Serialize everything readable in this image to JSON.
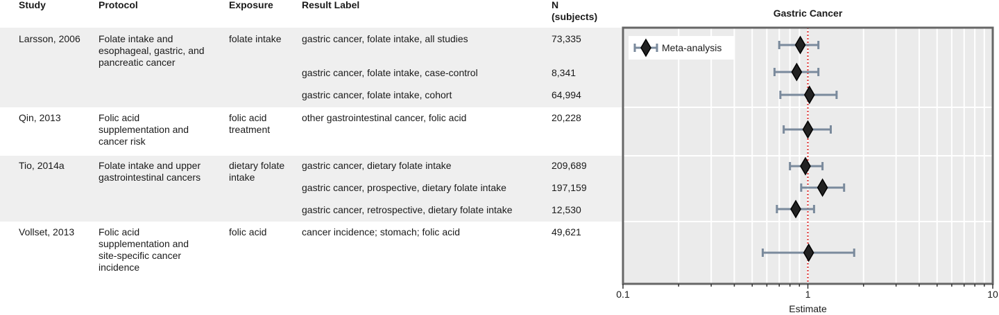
{
  "table": {
    "headers": {
      "study": "Study",
      "protocol": "Protocol",
      "exposure": "Exposure",
      "result_label": "Result Label",
      "n": "N\n(subjects)"
    },
    "groups": [
      {
        "study": "Larsson, 2006",
        "protocol": "Folate intake and\nesophageal, gastric, and\npancreatic cancer",
        "exposure": "folate intake",
        "shaded": true,
        "results": [
          {
            "label": "gastric cancer, folate intake, all studies",
            "n": "73,335"
          },
          {
            "label": "gastric cancer, folate intake, case-control",
            "n": "8,341"
          },
          {
            "label": "gastric cancer, folate intake, cohort",
            "n": "64,994"
          }
        ]
      },
      {
        "study": "Qin, 2013",
        "protocol": "Folic acid\nsupplementation and\ncancer risk",
        "exposure": "folic acid\ntreatment",
        "shaded": false,
        "results": [
          {
            "label": "other gastrointestinal cancer, folic acid",
            "n": "20,228"
          }
        ]
      },
      {
        "study": "Tio, 2014a",
        "protocol": "Folate intake and upper\ngastrointestinal cancers",
        "exposure": "dietary folate\nintake",
        "shaded": true,
        "results": [
          {
            "label": "gastric cancer, dietary folate intake",
            "n": "209,689"
          },
          {
            "label": "gastric cancer, prospective, dietary folate intake",
            "n": "197,159"
          },
          {
            "label": "gastric cancer, retrospective, dietary folate intake",
            "n": "12,530"
          }
        ]
      },
      {
        "study": "Vollset, 2013",
        "protocol": "Folic acid\nsupplementation and\nsite-specific cancer\nincidence",
        "exposure": "folic acid",
        "shaded": false,
        "results": [
          {
            "label": "cancer incidence; stomach; folic acid",
            "n": "49,621"
          }
        ]
      }
    ]
  },
  "chart_data": {
    "type": "scatter",
    "title": "Gastric Cancer",
    "xlabel": "Estimate",
    "xscale": "log",
    "xlim": [
      0.1,
      10
    ],
    "x_ticks": [
      "0.1",
      "1",
      "10"
    ],
    "reference_line": 1,
    "grid": true,
    "legend": {
      "entries": [
        "Meta-analysis"
      ],
      "placement": "top-left"
    },
    "series": [
      {
        "name": "Meta-analysis",
        "points": [
          {
            "estimate": 0.91,
            "lower": 0.7,
            "upper": 1.14
          },
          {
            "estimate": 0.87,
            "lower": 0.66,
            "upper": 1.14
          },
          {
            "estimate": 1.02,
            "lower": 0.71,
            "upper": 1.43
          },
          {
            "estimate": 1.0,
            "lower": 0.74,
            "upper": 1.33
          },
          {
            "estimate": 0.97,
            "lower": 0.8,
            "upper": 1.2
          },
          {
            "estimate": 1.2,
            "lower": 0.92,
            "upper": 1.57
          },
          {
            "estimate": 0.86,
            "lower": 0.68,
            "upper": 1.08
          },
          {
            "estimate": 1.01,
            "lower": 0.57,
            "upper": 1.78
          }
        ]
      }
    ],
    "colors": {
      "marker": "#222222",
      "error_bar": "#7a8a9c",
      "reference": "#e03030",
      "panel": "#ebebeb",
      "frame": "#666666",
      "band": "#efefef"
    }
  }
}
